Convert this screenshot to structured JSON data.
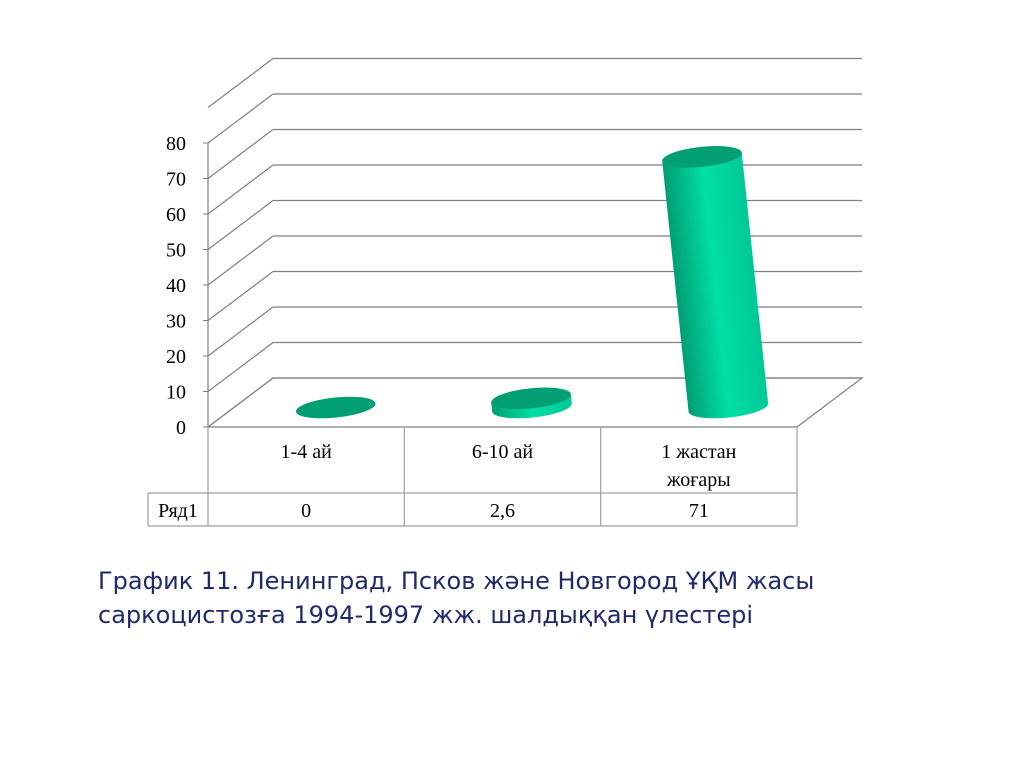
{
  "chart_data": {
    "type": "bar",
    "style": "3d-cylinder",
    "categories": [
      "1-4 ай",
      "6-10 ай",
      "1 жастан жоғары"
    ],
    "category_lines": [
      [
        "1-4 ай"
      ],
      [
        "6-10 ай"
      ],
      [
        "1 жастан",
        "жоғары"
      ]
    ],
    "series": [
      {
        "name": "Ряд1",
        "values": [
          0,
          2.6,
          71
        ]
      }
    ],
    "value_labels": [
      "0",
      "2,6",
      "71"
    ],
    "ylim": [
      0,
      80
    ],
    "yticks": [
      0,
      10,
      20,
      30,
      40,
      50,
      60,
      70,
      80
    ],
    "grid": true,
    "legend": "none",
    "data_table": true,
    "colors": {
      "bar": "#00c896",
      "bar_dark": "#009e74",
      "bar_light": "#00dfa6",
      "grid": "#808080"
    }
  },
  "caption": {
    "line1": "График 11. Ленинград, Псков және Новгород ҰҚМ жасы",
    "line2": "саркоцистозға 1994-1997 жж. шалдыққан үлестері"
  }
}
